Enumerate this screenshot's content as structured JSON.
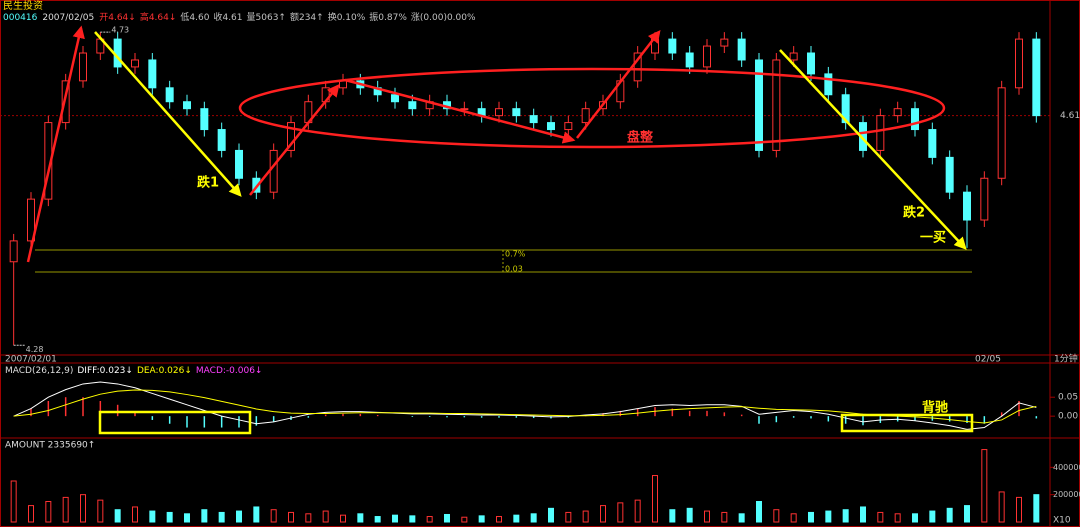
{
  "header": {
    "name": "民生投资",
    "code": "000416",
    "date": "2007/02/05",
    "fields": [
      "开4.64↓",
      "高4.64↓",
      "低4.60",
      "收4.61",
      "量5063↑",
      "额234↑",
      "换0.10%",
      "振0.87%",
      "涨(0.00)0.00%"
    ]
  },
  "chart_data": [
    {
      "type": "candlestick",
      "open": [
        4.4,
        4.43,
        4.49,
        4.6,
        4.66,
        4.7,
        4.72,
        4.68,
        4.69,
        4.65,
        4.63,
        4.62,
        4.59,
        4.56,
        4.52,
        4.5,
        4.56,
        4.6,
        4.63,
        4.65,
        4.66,
        4.65,
        4.64,
        4.63,
        4.62,
        4.63,
        4.62,
        4.62,
        4.61,
        4.62,
        4.61,
        4.6,
        4.59,
        4.6,
        4.62,
        4.63,
        4.66,
        4.7,
        4.72,
        4.7,
        4.68,
        4.71,
        4.72,
        4.69,
        4.56,
        4.69,
        4.7,
        4.67,
        4.64,
        4.6,
        4.56,
        4.61,
        4.62,
        4.59,
        4.55,
        4.5,
        4.46,
        4.52,
        4.65,
        4.72
      ],
      "high": [
        4.44,
        4.5,
        4.61,
        4.67,
        4.71,
        4.73,
        4.73,
        4.7,
        4.7,
        4.66,
        4.64,
        4.63,
        4.6,
        4.57,
        4.53,
        4.57,
        4.61,
        4.64,
        4.66,
        4.67,
        4.67,
        4.66,
        4.65,
        4.64,
        4.64,
        4.64,
        4.63,
        4.63,
        4.63,
        4.63,
        4.62,
        4.61,
        4.61,
        4.63,
        4.64,
        4.67,
        4.71,
        4.73,
        4.73,
        4.71,
        4.72,
        4.73,
        4.73,
        4.7,
        4.7,
        4.71,
        4.71,
        4.68,
        4.65,
        4.61,
        4.62,
        4.63,
        4.63,
        4.6,
        4.56,
        4.51,
        4.53,
        4.66,
        4.73,
        4.73
      ],
      "low": [
        4.28,
        4.42,
        4.48,
        4.59,
        4.65,
        4.69,
        4.67,
        4.67,
        4.64,
        4.62,
        4.61,
        4.58,
        4.55,
        4.51,
        4.49,
        4.49,
        4.55,
        4.59,
        4.62,
        4.64,
        4.64,
        4.63,
        4.62,
        4.61,
        4.61,
        4.61,
        4.61,
        4.6,
        4.6,
        4.6,
        4.59,
        4.58,
        4.58,
        4.59,
        4.61,
        4.62,
        4.65,
        4.69,
        4.69,
        4.67,
        4.67,
        4.7,
        4.68,
        4.55,
        4.55,
        4.68,
        4.66,
        4.63,
        4.59,
        4.55,
        4.55,
        4.6,
        4.58,
        4.54,
        4.49,
        4.42,
        4.45,
        4.51,
        4.64,
        4.6
      ],
      "close": [
        4.43,
        4.49,
        4.6,
        4.66,
        4.7,
        4.72,
        4.68,
        4.69,
        4.65,
        4.63,
        4.62,
        4.59,
        4.56,
        4.52,
        4.5,
        4.56,
        4.6,
        4.63,
        4.65,
        4.66,
        4.65,
        4.64,
        4.63,
        4.62,
        4.63,
        4.62,
        4.62,
        4.61,
        4.62,
        4.61,
        4.6,
        4.59,
        4.6,
        4.62,
        4.63,
        4.66,
        4.7,
        4.72,
        4.7,
        4.68,
        4.71,
        4.72,
        4.69,
        4.56,
        4.69,
        4.7,
        4.67,
        4.64,
        4.6,
        4.56,
        4.61,
        4.62,
        4.59,
        4.55,
        4.5,
        4.46,
        4.52,
        4.65,
        4.72,
        4.61
      ],
      "ylim": [
        4.266,
        4.769
      ],
      "yticks": [
        4.61
      ],
      "max_marker": 4.73,
      "min_marker": 4.28,
      "x_labels": [
        "2007/02/01",
        "02/05"
      ],
      "period": "1分钟",
      "level_labels": [
        "0.7%",
        "0.03"
      ],
      "annotations": [
        "跌1",
        "盘整",
        "跌2",
        "一买",
        "背驰"
      ],
      "up_color": "#ff3232",
      "down_color": "#54ffff"
    },
    {
      "type": "macd",
      "title": "MACD(26,12,9)",
      "readouts": [
        "DIFF:0.023↓",
        "DEA:0.026↓",
        "MACD:-0.006↓"
      ],
      "series": [
        {
          "color": "#ffffff",
          "values": [
            0.0,
            0.02,
            0.05,
            0.07,
            0.085,
            0.09,
            0.085,
            0.075,
            0.06,
            0.045,
            0.03,
            0.015,
            0.0,
            -0.01,
            -0.02,
            -0.015,
            -0.005,
            0.005,
            0.01,
            0.012,
            0.012,
            0.01,
            0.008,
            0.006,
            0.006,
            0.005,
            0.004,
            0.003,
            0.003,
            0.002,
            0.0,
            -0.002,
            -0.001,
            0.003,
            0.006,
            0.012,
            0.02,
            0.028,
            0.03,
            0.028,
            0.03,
            0.03,
            0.026,
            0.005,
            0.01,
            0.015,
            0.012,
            0.005,
            -0.005,
            -0.015,
            -0.01,
            -0.008,
            -0.012,
            -0.018,
            -0.025,
            -0.035,
            -0.03,
            0.0,
            0.035,
            0.023
          ]
        },
        {
          "color": "#ffff00",
          "values": [
            0.0,
            0.005,
            0.015,
            0.03,
            0.045,
            0.058,
            0.066,
            0.069,
            0.068,
            0.064,
            0.057,
            0.049,
            0.039,
            0.029,
            0.019,
            0.012,
            0.008,
            0.007,
            0.007,
            0.008,
            0.009,
            0.009,
            0.009,
            0.008,
            0.008,
            0.007,
            0.007,
            0.006,
            0.005,
            0.004,
            0.003,
            0.002,
            0.001,
            0.001,
            0.002,
            0.004,
            0.008,
            0.013,
            0.017,
            0.02,
            0.022,
            0.024,
            0.025,
            0.021,
            0.018,
            0.017,
            0.016,
            0.014,
            0.01,
            0.005,
            0.002,
            0.0,
            -0.002,
            -0.005,
            -0.009,
            -0.014,
            -0.018,
            -0.01,
            0.015,
            0.026
          ]
        }
      ],
      "histogram": [
        0.0,
        0.02,
        0.04,
        0.05,
        0.05,
        0.04,
        0.03,
        0.01,
        -0.01,
        -0.02,
        -0.03,
        -0.03,
        -0.03,
        -0.03,
        -0.025,
        -0.015,
        -0.01,
        -0.004,
        0.004,
        0.006,
        0.006,
        0.003,
        0.0,
        -0.002,
        -0.002,
        -0.003,
        -0.003,
        -0.004,
        -0.004,
        -0.004,
        -0.005,
        -0.006,
        -0.004,
        0.003,
        0.008,
        0.014,
        0.02,
        0.024,
        0.02,
        0.014,
        0.014,
        0.01,
        0.004,
        -0.02,
        -0.016,
        -0.004,
        -0.006,
        -0.014,
        -0.02,
        -0.024,
        -0.018,
        -0.014,
        -0.012,
        -0.012,
        -0.014,
        -0.018,
        -0.02,
        0.01,
        0.04,
        -0.006
      ],
      "ylim": [
        -0.055,
        0.135
      ],
      "yticks": [
        0.05,
        {
          "value": 0,
          "label": "0.00"
        }
      ]
    },
    {
      "type": "bar",
      "title": "AMOUNT 2335690↑",
      "values": [
        300000,
        120000,
        150000,
        180000,
        200000,
        160000,
        90000,
        110000,
        80000,
        70000,
        60000,
        90000,
        70000,
        80000,
        110000,
        90000,
        70000,
        60000,
        80000,
        50000,
        60000,
        40000,
        50000,
        45000,
        40000,
        55000,
        35000,
        45000,
        40000,
        50000,
        60000,
        100000,
        70000,
        80000,
        120000,
        140000,
        160000,
        340000,
        90000,
        100000,
        80000,
        70000,
        60000,
        150000,
        90000,
        60000,
        70000,
        80000,
        90000,
        110000,
        70000,
        60000,
        60000,
        80000,
        100000,
        120000,
        530000,
        220000,
        180000,
        200000
      ],
      "ylim": [
        0,
        600000
      ],
      "yticks": [
        200000,
        400000
      ],
      "scale_label": "X10"
    }
  ]
}
